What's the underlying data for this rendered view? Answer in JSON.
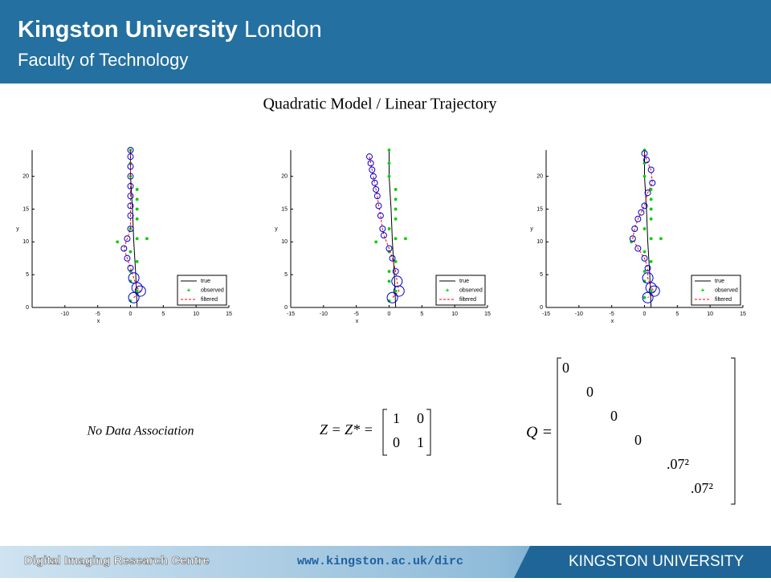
{
  "header": {
    "name": "Kingston University",
    "city": "London",
    "faculty": "Faculty of Technology"
  },
  "title": "Quadratic Model / Linear Trajectory",
  "chart_data": [
    {
      "type": "line",
      "x_label": "x",
      "y_label": "y",
      "xlim": [
        -15,
        15
      ],
      "ylim": [
        0,
        24
      ],
      "xticks": [
        -10,
        -5,
        0,
        5,
        10,
        15
      ],
      "yticks": [
        0,
        5,
        10,
        15,
        20
      ],
      "legend": "lower right",
      "series": [
        {
          "name": "true",
          "color": "#000000",
          "x": [
            1,
            0.8,
            0.5,
            0.3,
            0,
            0
          ],
          "values": [
            0,
            5,
            10,
            15,
            20,
            24
          ]
        },
        {
          "name": "observed",
          "color": "#00cc00",
          "x": [
            0,
            0,
            0,
            1,
            1,
            1,
            1,
            0,
            1,
            2.5,
            -2,
            0,
            1,
            0,
            0,
            1,
            0
          ],
          "values": [
            24,
            22,
            20,
            18,
            16.5,
            15,
            13.5,
            12,
            10.5,
            10.5,
            10,
            8.5,
            7,
            5.5,
            4,
            2.5,
            1
          ]
        },
        {
          "name": "filtered",
          "color": "#ff0000",
          "x": [
            0,
            0,
            0,
            0,
            0,
            0,
            0,
            0,
            0,
            -0.5,
            -1,
            -0.5,
            0,
            0.5,
            1,
            1.5,
            0.5
          ],
          "values": [
            24,
            23,
            21.5,
            20,
            18.5,
            17,
            15.5,
            14,
            12,
            10.5,
            9,
            7.5,
            6,
            4.5,
            3,
            2.5,
            1.5
          ]
        }
      ]
    },
    {
      "type": "line",
      "x_label": "x",
      "y_label": "y",
      "xlim": [
        -15,
        15
      ],
      "ylim": [
        0,
        24
      ],
      "xticks": [
        -15,
        -10,
        -5,
        0,
        5,
        10,
        15
      ],
      "yticks": [
        0,
        5,
        10,
        15,
        20
      ],
      "legend": "lower right",
      "series": [
        {
          "name": "true",
          "color": "#000000",
          "x": [
            1,
            0.8,
            0.5,
            0.3,
            0,
            0
          ],
          "values": [
            0,
            5,
            10,
            15,
            20,
            24
          ]
        },
        {
          "name": "observed",
          "color": "#00cc00",
          "x": [
            0,
            0,
            0,
            1,
            1,
            1,
            1,
            0,
            1,
            2.5,
            -2,
            0,
            1,
            0,
            0,
            1,
            0
          ],
          "values": [
            24,
            22,
            20,
            18,
            16.5,
            15,
            13.5,
            12,
            10.5,
            10.5,
            10,
            8.5,
            7,
            5.5,
            4,
            2.5,
            1
          ]
        },
        {
          "name": "filtered",
          "color": "#ff0000",
          "x": [
            -3,
            -2.8,
            -2.6,
            -2.4,
            -2.2,
            -2,
            -1.8,
            -1.6,
            -1.3,
            -1,
            -0.8,
            0,
            0.5,
            1,
            1.2,
            1.5,
            0.5
          ],
          "values": [
            23,
            22,
            21,
            20,
            19,
            18,
            17,
            15.5,
            14,
            12,
            11,
            9,
            7.5,
            5.5,
            4,
            2.5,
            1.5
          ]
        }
      ]
    },
    {
      "type": "line",
      "x_label": "x",
      "y_label": "y",
      "xlim": [
        -15,
        15
      ],
      "ylim": [
        0,
        24
      ],
      "xticks": [
        -15,
        -10,
        -5,
        0,
        5,
        10,
        15
      ],
      "yticks": [
        0,
        5,
        10,
        15,
        20
      ],
      "legend": "lower right",
      "series": [
        {
          "name": "true",
          "color": "#000000",
          "x": [
            1,
            0.8,
            0.5,
            0.3,
            0,
            0
          ],
          "values": [
            0,
            5,
            10,
            15,
            20,
            24
          ]
        },
        {
          "name": "observed",
          "color": "#00cc00",
          "x": [
            0,
            0,
            0,
            1,
            1,
            1,
            1,
            0,
            1,
            2.5,
            -2,
            0,
            1,
            0,
            0,
            1,
            0
          ],
          "values": [
            24,
            22,
            20,
            18,
            16.5,
            15,
            13.5,
            12,
            10.5,
            10.5,
            10,
            8.5,
            7,
            5.5,
            4,
            2.5,
            1.5
          ]
        },
        {
          "name": "filtered",
          "color": "#ff0000",
          "x": [
            0,
            0.3,
            1,
            1.2,
            0.5,
            0,
            -0.5,
            -1,
            -1.5,
            -1.8,
            -1,
            0,
            0.5,
            0.5,
            1,
            1.5,
            0.5
          ],
          "values": [
            23.5,
            22.5,
            21,
            19,
            17.5,
            15.5,
            14.5,
            13.5,
            12,
            10.5,
            9,
            7.5,
            6,
            4.5,
            3,
            2.5,
            1.5
          ]
        }
      ]
    }
  ],
  "no_data_association": "No Data Association",
  "z_equation": {
    "lhs": "Z = Z* =",
    "matrix": [
      [
        1,
        0
      ],
      [
        0,
        1
      ]
    ]
  },
  "q_equation": {
    "lhs": "Q =",
    "diagonal": [
      "0",
      "0",
      "0",
      "0",
      ".07²",
      ".07²"
    ]
  },
  "footer": {
    "centre": "Digital Imaging Research Centre",
    "url": "www.kingston.ac.uk/dirc",
    "brand": "KINGSTON UNIVERSITY"
  }
}
